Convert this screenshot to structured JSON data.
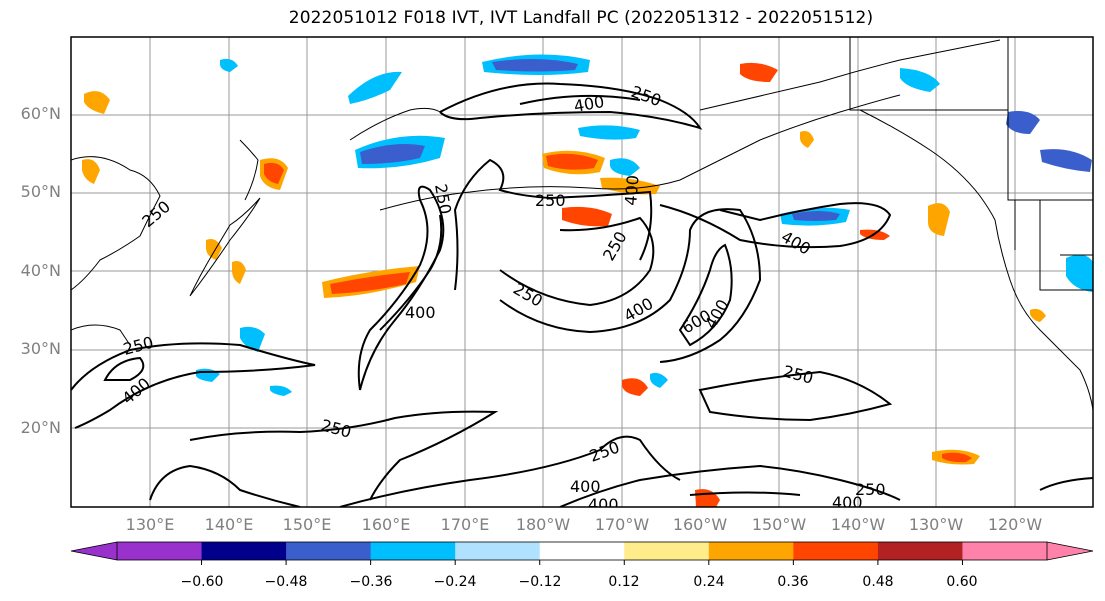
{
  "title": "2022051012 F018 IVT, IVT Landfall PC (2022051312 - 2022051512)",
  "lat_labels": [
    "60°N",
    "50°N",
    "40°N",
    "30°N",
    "20°N"
  ],
  "lon_labels": [
    "130°E",
    "140°E",
    "150°E",
    "160°E",
    "170°E",
    "180°W",
    "170°W",
    "160°W",
    "150°W",
    "140°W",
    "130°W",
    "120°W"
  ],
  "colorbar": {
    "colors": [
      "#9932cc",
      "#00008b",
      "#3a5fcd",
      "#00bfff",
      "#b0e2ff",
      "#ffffff",
      "#ffec8b",
      "#ffa500",
      "#ff4500",
      "#b22222",
      "#ff82ab"
    ],
    "tick_labels": [
      "−0.60",
      "−0.48",
      "−0.36",
      "−0.24",
      "−0.12",
      "0.12",
      "0.24",
      "0.36",
      "0.48",
      "0.60"
    ]
  },
  "contour_labels": [
    "250",
    "250",
    "250",
    "250",
    "250",
    "250",
    "250",
    "250",
    "250",
    "250",
    "250",
    "400",
    "400",
    "400",
    "400",
    "400",
    "400",
    "400",
    "400",
    "400",
    "400",
    "600"
  ]
}
